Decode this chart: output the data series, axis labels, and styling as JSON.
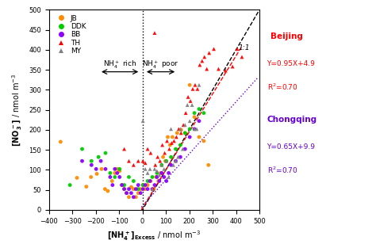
{
  "xlim": [
    -400,
    500
  ],
  "ylim": [
    0,
    500
  ],
  "xticks": [
    -400,
    -300,
    -200,
    -100,
    0,
    100,
    200,
    300,
    400,
    500
  ],
  "yticks": [
    0,
    50,
    100,
    150,
    200,
    250,
    300,
    350,
    400,
    450,
    500
  ],
  "JB": {
    "color": "#FF8C00",
    "marker": "o",
    "x": [
      -350,
      -280,
      -240,
      -220,
      -195,
      -175,
      -160,
      -148,
      -130,
      -118,
      -108,
      -98,
      -88,
      -78,
      -68,
      -58,
      -48,
      -38,
      -28,
      -18,
      -8,
      2,
      12,
      22,
      35,
      48,
      58,
      68,
      78,
      88,
      98,
      108,
      118,
      128,
      148,
      165,
      182,
      202,
      222,
      242,
      262,
      282
    ],
    "y": [
      170,
      80,
      58,
      82,
      90,
      102,
      52,
      47,
      72,
      92,
      102,
      97,
      62,
      52,
      42,
      32,
      57,
      52,
      32,
      42,
      52,
      62,
      52,
      62,
      72,
      52,
      82,
      72,
      92,
      132,
      122,
      182,
      162,
      182,
      192,
      200,
      192,
      312,
      232,
      182,
      172,
      112
    ]
  },
  "DDK": {
    "color": "#00CC00",
    "marker": "o",
    "x": [
      -310,
      -258,
      -218,
      -188,
      -158,
      -138,
      -118,
      -98,
      -78,
      -58,
      -38,
      -18,
      2,
      22,
      42,
      62,
      82,
      102,
      122,
      142,
      162,
      182,
      202,
      222,
      242,
      262
    ],
    "y": [
      62,
      152,
      122,
      132,
      142,
      92,
      82,
      102,
      62,
      82,
      72,
      52,
      62,
      72,
      82,
      92,
      112,
      122,
      132,
      152,
      162,
      192,
      202,
      242,
      252,
      242
    ]
  },
  "BB": {
    "color": "#8B00FF",
    "marker": "o",
    "x": [
      -258,
      -218,
      -198,
      -178,
      -158,
      -138,
      -128,
      -118,
      -108,
      -98,
      -88,
      -78,
      -68,
      -58,
      -48,
      -38,
      -28,
      -18,
      -8,
      2,
      12,
      22,
      32,
      42,
      52,
      62,
      72,
      82,
      92,
      102,
      112,
      122,
      142,
      162,
      182,
      202,
      222,
      242
    ],
    "y": [
      122,
      112,
      102,
      122,
      102,
      82,
      62,
      102,
      92,
      82,
      62,
      52,
      42,
      52,
      42,
      32,
      52,
      62,
      42,
      52,
      62,
      52,
      72,
      52,
      62,
      82,
      72,
      92,
      82,
      72,
      92,
      112,
      122,
      132,
      152,
      182,
      202,
      222
    ]
  },
  "TH": {
    "color": "#FF0000",
    "marker": "^",
    "x": [
      -78,
      -58,
      -38,
      -18,
      2,
      12,
      22,
      35,
      45,
      55,
      65,
      75,
      85,
      95,
      105,
      115,
      125,
      135,
      145,
      155,
      165,
      175,
      185,
      195,
      205,
      215,
      225,
      235,
      245,
      255,
      265,
      275,
      52,
      285,
      305,
      325,
      355,
      385,
      405,
      425
    ],
    "y": [
      152,
      122,
      112,
      122,
      122,
      117,
      152,
      142,
      52,
      112,
      132,
      122,
      162,
      142,
      172,
      152,
      167,
      172,
      182,
      202,
      192,
      212,
      242,
      282,
      272,
      302,
      312,
      302,
      362,
      372,
      382,
      352,
      442,
      392,
      402,
      352,
      348,
      358,
      402,
      382
    ]
  },
  "MY": {
    "color": "#808080",
    "marker": "^",
    "x": [
      2,
      12,
      22,
      32,
      42,
      52,
      62,
      72,
      82,
      92,
      102,
      112,
      122,
      132,
      142,
      152,
      162,
      172,
      182,
      192,
      202,
      212,
      222,
      232,
      242
    ],
    "y": [
      222,
      102,
      92,
      102,
      52,
      102,
      97,
      87,
      112,
      102,
      122,
      82,
      202,
      112,
      122,
      132,
      202,
      152,
      212,
      262,
      222,
      262,
      202,
      202,
      312
    ]
  },
  "vline_x": 0,
  "line_11_color": "black",
  "line_bj_color": "#FF0000",
  "line_cq_color": "#6600CC",
  "bj_slope": 0.95,
  "bj_intercept": 4.9,
  "cq_slope": 0.65,
  "cq_intercept": 9.9
}
